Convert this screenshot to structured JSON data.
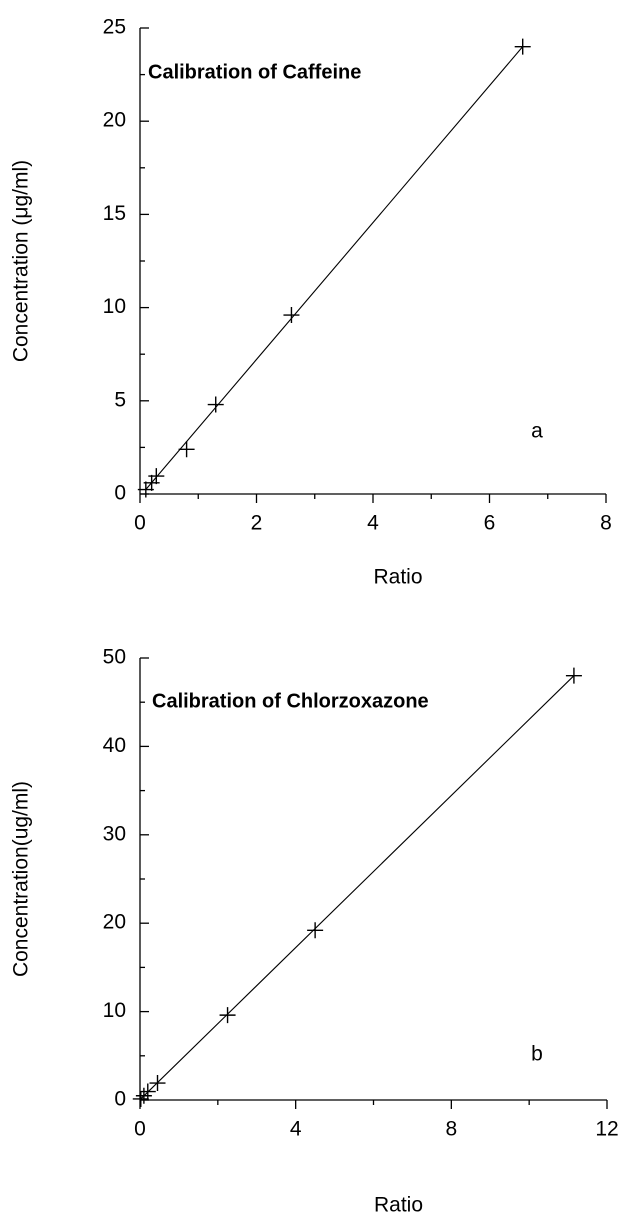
{
  "chart_data": [
    {
      "type": "scatter",
      "title": "Calibration of Caffeine",
      "annotation": "a",
      "x_label": "Ratio",
      "y_label": "Concentration (μg/ml)",
      "x": [
        0.1,
        0.2,
        0.28,
        0.8,
        1.3,
        2.6,
        6.57
      ],
      "values": [
        0.24,
        0.6,
        0.96,
        2.4,
        4.8,
        9.6,
        24
      ],
      "fit": {
        "x": [
          0.1,
          6.57
        ],
        "y": [
          0.24,
          24
        ]
      },
      "color": "#000000",
      "xlim": [
        0,
        8
      ],
      "xticks": [
        0,
        2,
        4,
        6,
        8
      ],
      "ylim": [
        0,
        25
      ],
      "yticks": [
        0,
        5,
        10,
        15,
        20,
        25
      ]
    },
    {
      "type": "scatter",
      "title": "Calibration of Chlorzoxazone",
      "annotation": "b",
      "x_label": "Ratio",
      "y_label": "Concentration(ug/ml)",
      "x": [
        0.02,
        0.1,
        0.2,
        0.45,
        2.25,
        4.5,
        11.15
      ],
      "values": [
        0.12,
        0.48,
        0.96,
        1.92,
        9.6,
        19.2,
        48
      ],
      "fit": {
        "x": [
          0.02,
          11.15
        ],
        "y": [
          0.12,
          48
        ]
      },
      "color": "#000000",
      "xlim": [
        0,
        12
      ],
      "xticks": [
        0,
        4,
        8,
        12
      ],
      "ylim": [
        0,
        50
      ],
      "yticks": [
        0,
        10,
        20,
        30,
        40,
        50
      ]
    }
  ]
}
